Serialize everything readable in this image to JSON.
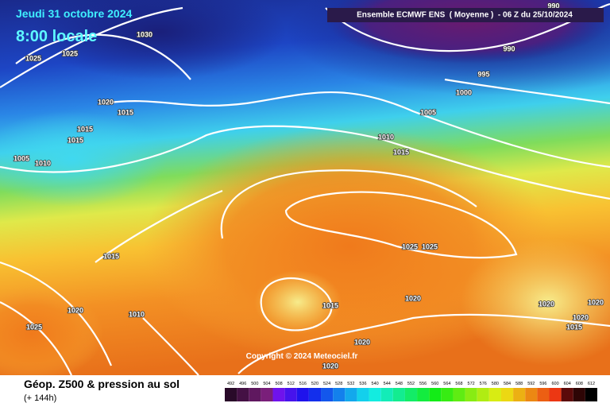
{
  "header": {
    "date": "Jeudi 31 octobre 2024",
    "time": "8:00 locale",
    "model": "Ensemble ECMWF ENS  ( Moyenne )  - 06 Z du 25/10/2024"
  },
  "map": {
    "isobar_labels": [
      "1030",
      "1025",
      "1025",
      "1020",
      "1015",
      "1015",
      "1015",
      "1005",
      "1010",
      "1015",
      "1020",
      "1010",
      "1025",
      "990",
      "990",
      "995",
      "1000",
      "1005",
      "1010",
      "1015",
      "1025",
      "1025",
      "1020",
      "1015",
      "1020",
      "1020",
      "1020",
      "1020",
      "1020",
      "1015"
    ],
    "copyright": "Copyright © 2024 Meteociel.fr"
  },
  "footer": {
    "title": "Géop. Z500 & pression au sol",
    "lead": "(+ 144h)",
    "scale": [
      492,
      496,
      500,
      504,
      508,
      512,
      516,
      520,
      524,
      528,
      532,
      536,
      540,
      544,
      548,
      552,
      556,
      560,
      564,
      568,
      572,
      576,
      580,
      584,
      588,
      592,
      596,
      600,
      604,
      608,
      612
    ]
  }
}
